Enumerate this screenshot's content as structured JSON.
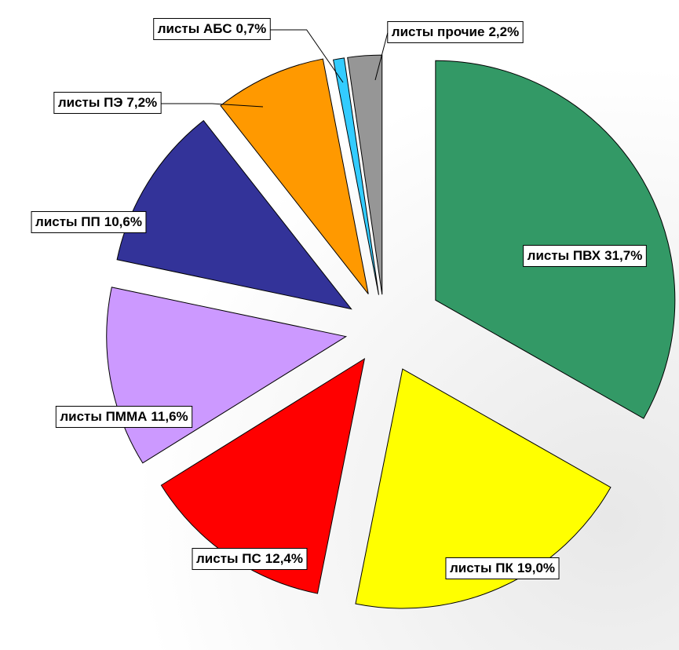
{
  "chart_data": {
    "type": "pie",
    "categories": [
      "листы ПВХ",
      "листы ПК",
      "листы ПС",
      "листы ПММА",
      "листы ПП",
      "листы ПЭ",
      "листы АБС",
      "листы прочие"
    ],
    "values": [
      31.7,
      19.0,
      12.4,
      11.6,
      10.6,
      7.2,
      0.7,
      2.2
    ],
    "value_labels": [
      "31,7%",
      "19,0%",
      "12,4%",
      "11,6%",
      "10,6%",
      "7,2%",
      "0,7%",
      "2,2%"
    ],
    "colors": [
      "#339966",
      "#ffff00",
      "#ff0000",
      "#cc99ff",
      "#333399",
      "#ff9900",
      "#33ccff",
      "#969696"
    ]
  }
}
